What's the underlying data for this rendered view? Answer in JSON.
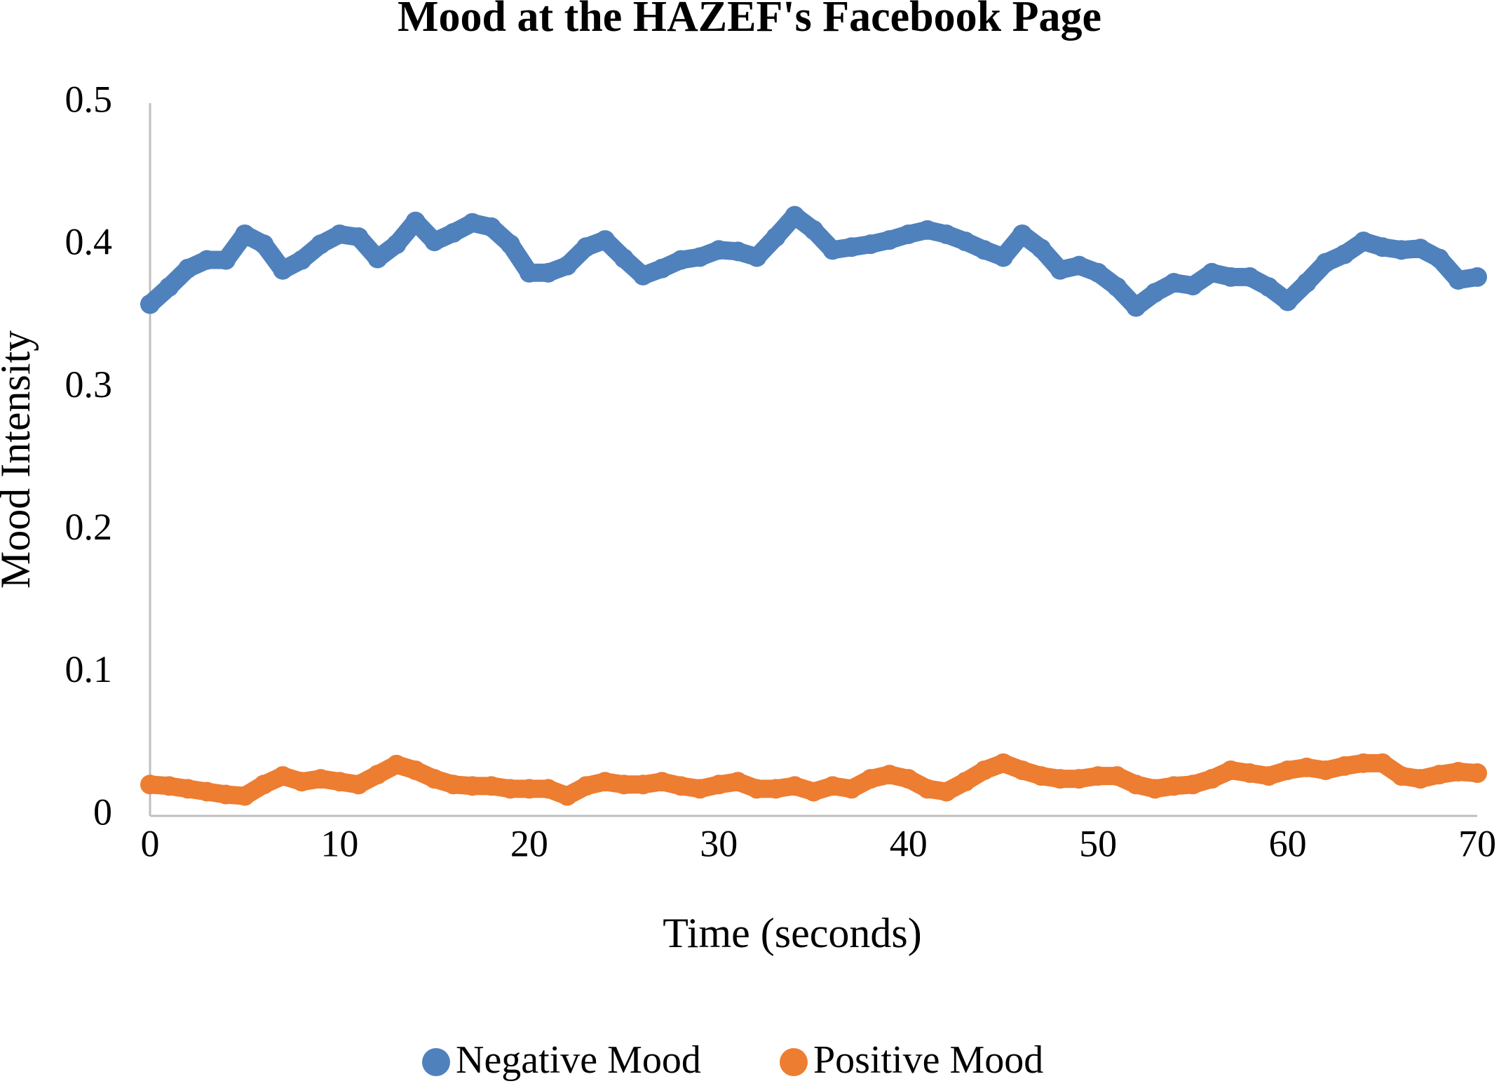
{
  "chart_data": {
    "type": "line",
    "title": "Mood at the HAZEF's Facebook Page",
    "x_label": "Time (seconds)",
    "y_label": "Mood Intensity",
    "x": [
      0,
      1,
      2,
      3,
      4,
      5,
      6,
      7,
      8,
      9,
      10,
      11,
      12,
      13,
      14,
      15,
      16,
      17,
      18,
      19,
      20,
      21,
      22,
      23,
      24,
      25,
      26,
      27,
      28,
      29,
      30,
      31,
      32,
      33,
      34,
      35,
      36,
      37,
      38,
      39,
      40,
      41,
      42,
      43,
      44,
      45,
      46,
      47,
      48,
      49,
      50,
      51,
      52,
      53,
      54,
      55,
      56,
      57,
      58,
      59,
      60,
      61,
      62,
      63,
      64,
      65,
      66,
      67,
      68,
      69,
      70
    ],
    "series": [
      {
        "name": "Negative Mood",
        "color": "#4f81bd",
        "values": [
          0.359,
          0.371,
          0.384,
          0.39,
          0.39,
          0.408,
          0.401,
          0.383,
          0.39,
          0.401,
          0.408,
          0.406,
          0.391,
          0.401,
          0.417,
          0.403,
          0.409,
          0.416,
          0.413,
          0.401,
          0.381,
          0.381,
          0.386,
          0.399,
          0.404,
          0.391,
          0.379,
          0.384,
          0.39,
          0.392,
          0.397,
          0.396,
          0.392,
          0.406,
          0.421,
          0.411,
          0.397,
          0.399,
          0.401,
          0.404,
          0.408,
          0.411,
          0.408,
          0.403,
          0.397,
          0.392,
          0.408,
          0.398,
          0.383,
          0.386,
          0.381,
          0.371,
          0.357,
          0.367,
          0.374,
          0.372,
          0.381,
          0.378,
          0.378,
          0.371,
          0.361,
          0.374,
          0.388,
          0.394,
          0.403,
          0.399,
          0.397,
          0.398,
          0.391,
          0.376,
          0.378
        ]
      },
      {
        "name": "Positive Mood",
        "color": "#ed7d31",
        "values": [
          0.022,
          0.021,
          0.019,
          0.017,
          0.015,
          0.014,
          0.022,
          0.028,
          0.024,
          0.026,
          0.024,
          0.022,
          0.029,
          0.036,
          0.032,
          0.026,
          0.022,
          0.021,
          0.021,
          0.019,
          0.019,
          0.019,
          0.014,
          0.021,
          0.024,
          0.022,
          0.022,
          0.024,
          0.021,
          0.019,
          0.022,
          0.024,
          0.019,
          0.019,
          0.021,
          0.017,
          0.021,
          0.019,
          0.026,
          0.029,
          0.026,
          0.019,
          0.017,
          0.024,
          0.032,
          0.037,
          0.032,
          0.028,
          0.026,
          0.026,
          0.028,
          0.028,
          0.022,
          0.019,
          0.021,
          0.022,
          0.026,
          0.032,
          0.03,
          0.028,
          0.032,
          0.034,
          0.032,
          0.035,
          0.037,
          0.037,
          0.028,
          0.026,
          0.029,
          0.031,
          0.03
        ]
      }
    ],
    "xlim": [
      0,
      70
    ],
    "xticks": [
      0,
      10,
      20,
      30,
      40,
      50,
      60,
      70
    ],
    "ylim": [
      0,
      0.5
    ],
    "yticks": [
      0,
      0.1,
      0.2,
      0.3,
      0.4,
      0.5
    ],
    "grid": false,
    "legend": "bottom"
  }
}
